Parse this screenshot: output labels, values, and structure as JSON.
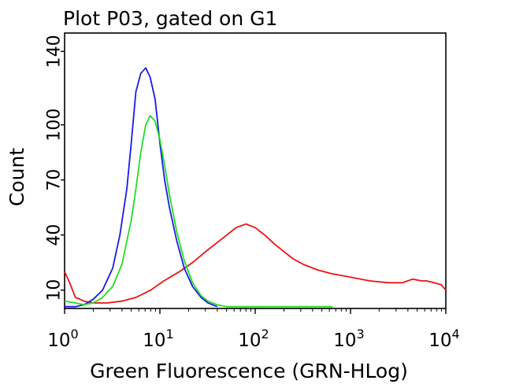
{
  "chart_data": {
    "type": "line",
    "title": "Plot P03, gated on G1",
    "xlabel": "Green Fluorescence (GRN-HLog)",
    "ylabel": "Count",
    "x_scale": "log",
    "xlim": [
      1,
      10000
    ],
    "ylim": [
      0,
      150
    ],
    "x_ticks": [
      {
        "value": 1,
        "base": "10",
        "exp": "0"
      },
      {
        "value": 10,
        "base": "10",
        "exp": "1"
      },
      {
        "value": 100,
        "base": "10",
        "exp": "2"
      },
      {
        "value": 1000,
        "base": "10",
        "exp": "3"
      },
      {
        "value": 10000,
        "base": "10",
        "exp": "4"
      }
    ],
    "y_ticks": [
      10,
      40,
      70,
      100,
      140
    ],
    "grid": false,
    "series": [
      {
        "color": "#ee1111",
        "x": [
          1.0,
          1.13,
          1.3,
          1.6,
          2.0,
          2.8,
          4.0,
          5.6,
          8.0,
          11,
          16,
          22,
          32,
          45,
          63,
          80,
          100,
          126,
          160,
          200,
          250,
          320,
          450,
          630,
          1000,
          1600,
          2500,
          3500,
          4500,
          5600,
          6300,
          7500,
          8900,
          10000
        ],
        "y": [
          20,
          14,
          6,
          4,
          3,
          3,
          4,
          6,
          10,
          15,
          20,
          25,
          32,
          38,
          44,
          46,
          44,
          40,
          35,
          31,
          27,
          24,
          21,
          19,
          17,
          15,
          14,
          14,
          16,
          15,
          15,
          14,
          13,
          10
        ]
      },
      {
        "color": "#1a1ae6",
        "x": [
          1.0,
          1.3,
          1.6,
          2.0,
          2.5,
          3.2,
          3.8,
          4.5,
          5.0,
          5.6,
          6.3,
          7.1,
          7.9,
          8.9,
          10,
          11.2,
          12.6,
          15,
          18,
          22,
          27,
          32,
          40
        ],
        "y": [
          1,
          1,
          2,
          5,
          10,
          22,
          40,
          65,
          90,
          118,
          128,
          131,
          126,
          114,
          90,
          70,
          55,
          37,
          22,
          12,
          6,
          3,
          1
        ]
      },
      {
        "color": "#22dd22",
        "x": [
          1.0,
          1.3,
          1.6,
          2.0,
          2.5,
          3.2,
          4.0,
          5.0,
          5.6,
          6.3,
          7.1,
          7.9,
          8.9,
          10,
          11.2,
          12.6,
          15,
          18,
          22,
          27,
          32,
          40,
          50,
          63,
          100,
          200,
          400,
          650
        ],
        "y": [
          4,
          3,
          2,
          3,
          6,
          12,
          24,
          48,
          65,
          85,
          100,
          105,
          102,
          92,
          78,
          62,
          42,
          26,
          14,
          7,
          4,
          2,
          1,
          1,
          1,
          1,
          1,
          1
        ]
      }
    ]
  }
}
